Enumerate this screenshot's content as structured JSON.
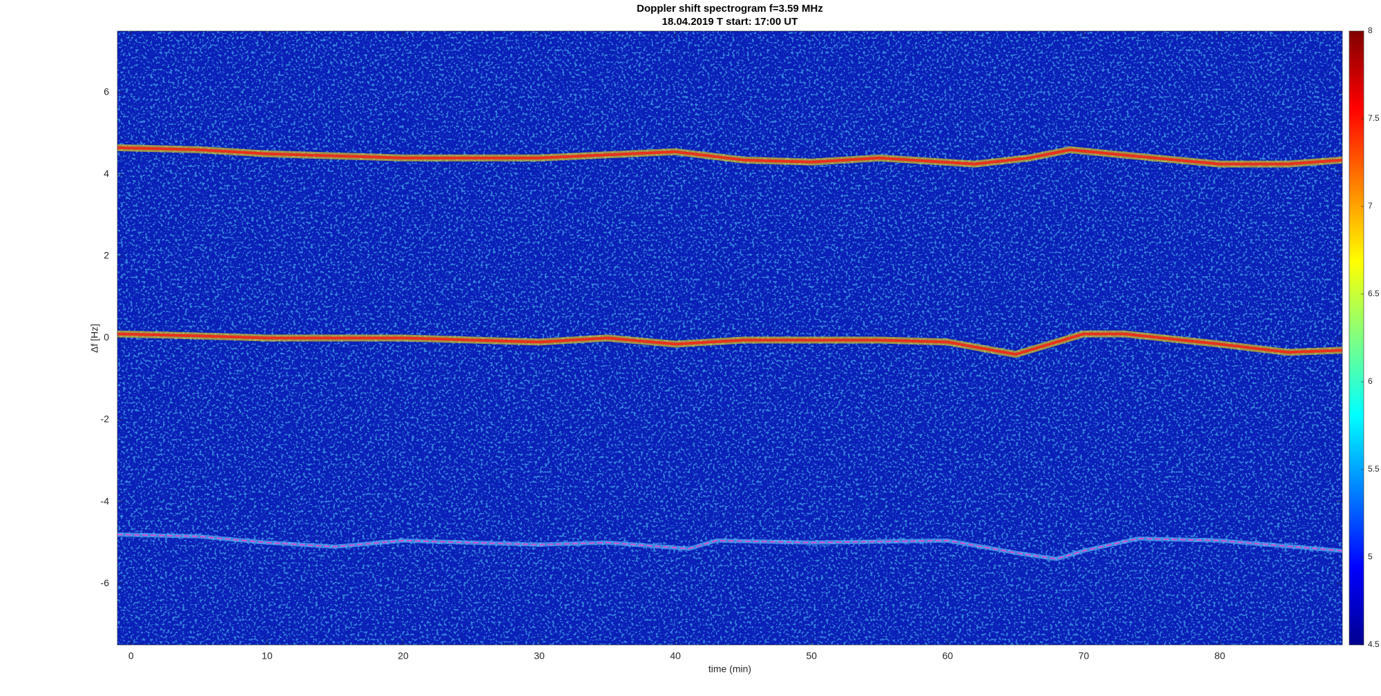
{
  "chart_data": {
    "type": "spectrogram",
    "title": "Doppler shift spectrogram f=3.59 MHz",
    "subtitle": "18.04.2019   T start: 17:00 UT",
    "x_label": "time (min)",
    "y_label": "Δf [Hz]",
    "xlim": [
      -1,
      89
    ],
    "xticks": [
      0,
      10,
      20,
      30,
      40,
      50,
      60,
      70,
      80
    ],
    "ylim": [
      -7.5,
      7.5
    ],
    "yticks": [
      -6,
      -4,
      -2,
      0,
      2,
      4,
      6
    ],
    "colormap": "jet",
    "clim": [
      4.5,
      8
    ],
    "cticks": [
      4.5,
      5,
      5.5,
      6,
      6.5,
      7,
      7.5,
      8
    ],
    "series": [
      {
        "color": "#e8301f",
        "x": [
          -1,
          5,
          10,
          20,
          30,
          40,
          45,
          50,
          55,
          62,
          66,
          69,
          72,
          80,
          85,
          89
        ],
        "values": [
          4.65,
          4.6,
          4.5,
          4.4,
          4.4,
          4.55,
          4.35,
          4.3,
          4.4,
          4.25,
          4.4,
          4.6,
          4.5,
          4.25,
          4.25,
          4.35
        ]
      },
      {
        "color": "#e8301f",
        "x": [
          -1,
          5,
          10,
          20,
          30,
          35,
          40,
          45,
          55,
          60,
          65,
          68,
          70,
          73,
          80,
          85,
          89
        ],
        "values": [
          0.1,
          0.05,
          0,
          0,
          -0.1,
          0,
          -0.15,
          -0.05,
          -0.05,
          -0.1,
          -0.4,
          -0.1,
          0.1,
          0.1,
          -0.15,
          -0.35,
          -0.3
        ]
      },
      {
        "color": "#d94fd6",
        "x": [
          -1,
          5,
          10,
          15,
          20,
          30,
          35,
          41,
          43,
          50,
          60,
          65,
          68,
          70,
          74,
          80,
          89
        ],
        "values": [
          -4.8,
          -4.85,
          -5.0,
          -5.1,
          -4.95,
          -5.05,
          -5.0,
          -5.15,
          -4.95,
          -5.0,
          -4.95,
          -5.25,
          -5.4,
          -5.2,
          -4.9,
          -4.95,
          -5.2
        ]
      }
    ]
  }
}
